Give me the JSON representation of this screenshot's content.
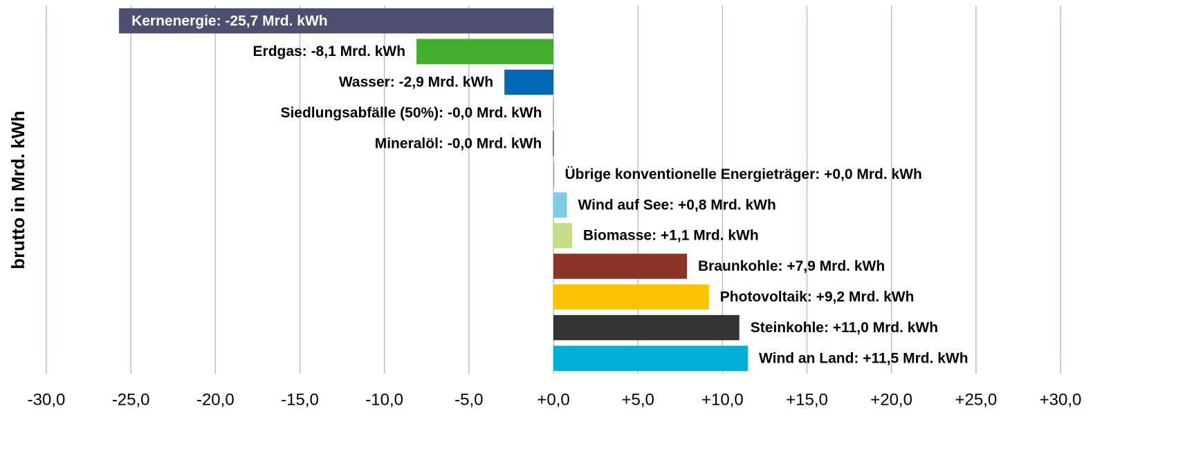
{
  "chart_data": {
    "type": "hbar",
    "y_label": "brutto in Mrd. kWh",
    "values": [
      -25.7,
      -8.1,
      -2.9,
      -0.02,
      -0.03,
      0.02,
      0.8,
      1.1,
      7.9,
      9.2,
      11.0,
      11.5
    ],
    "value_labels": [
      "Kernenergie: -25,7 Mrd. kWh",
      "Erdgas: -8,1 Mrd. kWh",
      "Wasser: -2,9 Mrd. kWh",
      "Siedlungsabfälle (50%): -0,0 Mrd. kWh",
      "Mineralöl: -0,0 Mrd. kWh",
      "Übrige konventionelle Energieträger: +0,0 Mrd. kWh",
      "Wind auf See: +0,8 Mrd. kWh",
      "Biomasse: +1,1 Mrd. kWh",
      "Braunkohle: +7,9 Mrd. kWh",
      "Photovoltaik: +9,2 Mrd. kWh",
      "Steinkohle: +11,0 Mrd. kWh",
      "Wind an Land: +11,5 Mrd. kWh"
    ],
    "colors": [
      "#4e4e70",
      "#41ad2c",
      "#0068b4",
      "#9a9a9a",
      "#1f3f7a",
      "#9a9a9a",
      "#7fcbe7",
      "#c6dc86",
      "#8b3427",
      "#fdc300",
      "#333333",
      "#00afd6"
    ],
    "xlim": [
      -30,
      30
    ],
    "xticks": [
      {
        "value": -30,
        "label": "-30,0"
      },
      {
        "value": -25,
        "label": "-25,0"
      },
      {
        "value": -20,
        "label": "-20,0"
      },
      {
        "value": -15,
        "label": "-15,0"
      },
      {
        "value": -10,
        "label": "-10,0"
      },
      {
        "value": -5,
        "label": "-5,0"
      },
      {
        "value": 0,
        "label": "+0,0"
      },
      {
        "value": 5,
        "label": "+5,0"
      },
      {
        "value": 10,
        "label": "+10,0"
      },
      {
        "value": 15,
        "label": "+15,0"
      },
      {
        "value": 20,
        "label": "+20,0"
      },
      {
        "value": 25,
        "label": "+25,0"
      },
      {
        "value": 30,
        "label": "+30,0"
      }
    ],
    "grid": true
  }
}
